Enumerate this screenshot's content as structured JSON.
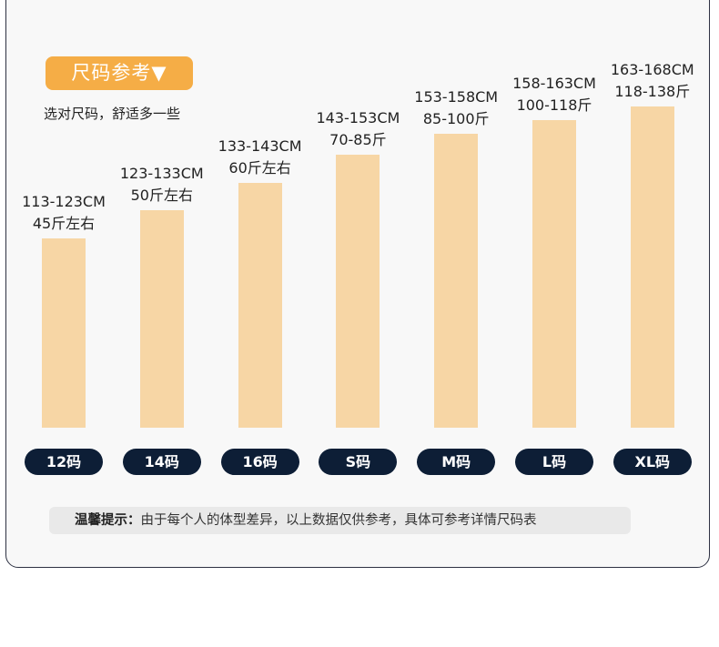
{
  "header": {
    "title": "尺码参考▼",
    "subtitle": "选对尺码，舒适多一些"
  },
  "chart_data": {
    "type": "bar",
    "categories": [
      "12码",
      "14码",
      "16码",
      "S码",
      "M码",
      "L码",
      "XL码"
    ],
    "height_ranges": [
      "113-123CM",
      "123-133CM",
      "133-143CM",
      "143-153CM",
      "153-158CM",
      "158-163CM",
      "163-168CM"
    ],
    "weight_ranges": [
      "45斤左右",
      "50斤左右",
      "60斤左右",
      "70-85斤",
      "85-100斤",
      "100-118斤",
      "118-138斤"
    ],
    "values": [
      118,
      128,
      138,
      148,
      155.5,
      160.5,
      165.5
    ],
    "ylim": [
      50,
      168
    ],
    "grid": false,
    "legend": "none"
  },
  "tip": {
    "label": "温馨提示：",
    "text": "由于每个人的体型差异，以上数据仅供参考，具体可参考详情尺码表"
  },
  "colors": {
    "accent": "#f5ad46",
    "bar": "#f7d6a5",
    "pill": "#0d1e36",
    "tip_bg": "#e9e9e9",
    "border": "#2d3142"
  }
}
